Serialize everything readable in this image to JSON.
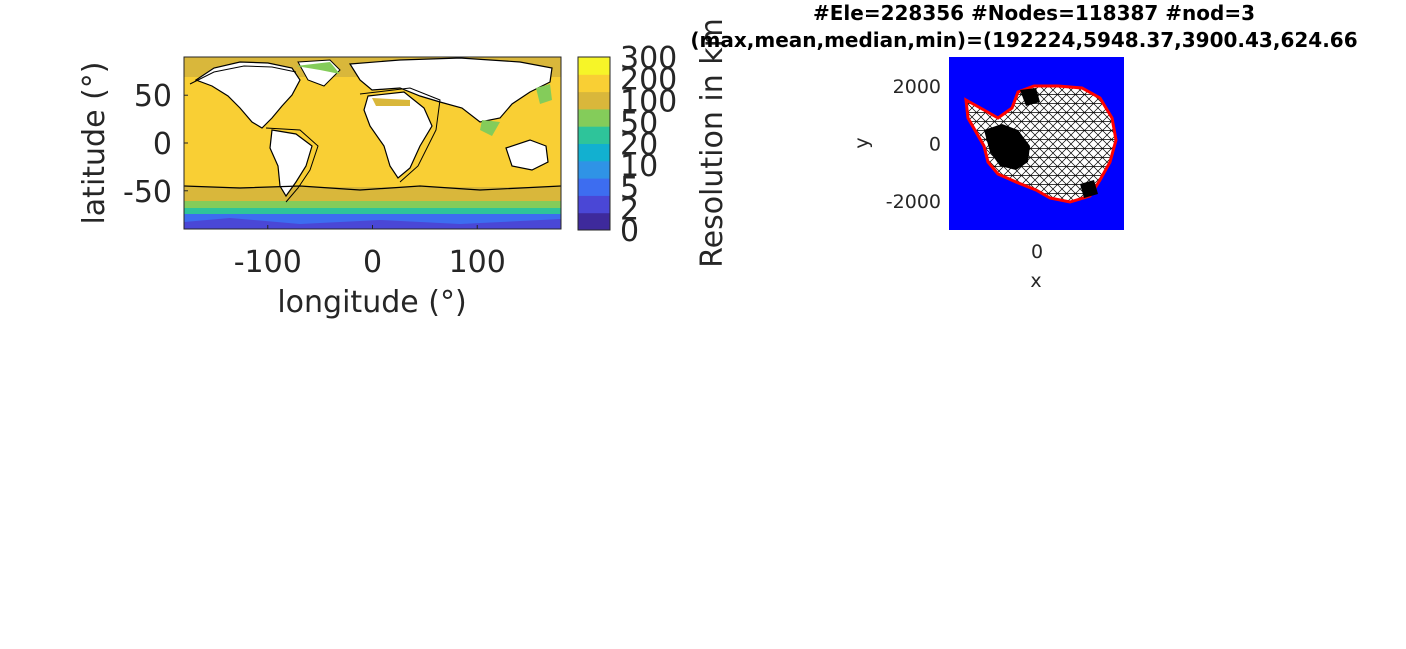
{
  "chart_data": [
    {
      "type": "heatmap",
      "title": "",
      "xlabel": "longitude (°)",
      "ylabel": "latitude (°)",
      "xlim": [
        -180,
        180
      ],
      "ylim": [
        -90,
        90
      ],
      "x_ticks": [
        -100,
        0,
        100
      ],
      "y_ticks": [
        50,
        0,
        -50
      ],
      "colorbar": {
        "label": "Resolution in km",
        "tick_labels": [
          "0",
          "2",
          "5",
          "10",
          "20",
          "50",
          "100",
          "200",
          "300"
        ],
        "level_colors": [
          "#3e2a9c",
          "#4a47d6",
          "#3d6df0",
          "#2f93e6",
          "#12b0d0",
          "#2ec49a",
          "#84cc5a",
          "#d9b73b",
          "#f9cf34",
          "#f6f528"
        ]
      },
      "grid": false,
      "colors": {
        "land": "#ffffff",
        "coarse_ocean": "#f9cf34",
        "mid_ocean": "#d9b73b",
        "shelf": "#84cc5a",
        "southern": "#3d6df0",
        "contour": "#000000"
      }
    },
    {
      "type": "scatter",
      "title_lines": [
        "#Ele=228356 #Nodes=118387 #nod=3",
        "(max,mean,median,min)=(192224,5948.37,3900.43,624.66"
      ],
      "xlabel": "x",
      "ylabel": "y",
      "x_ticks": [
        0
      ],
      "y_ticks": [
        2000,
        0,
        -2000
      ],
      "xlim": [
        -3000,
        3000
      ],
      "ylim": [
        -3000,
        3000
      ],
      "grid": false,
      "colors": {
        "background": "#0000ff",
        "mesh": "#000000",
        "boundary": "#ff0000",
        "interior": "#ffffff"
      }
    }
  ]
}
